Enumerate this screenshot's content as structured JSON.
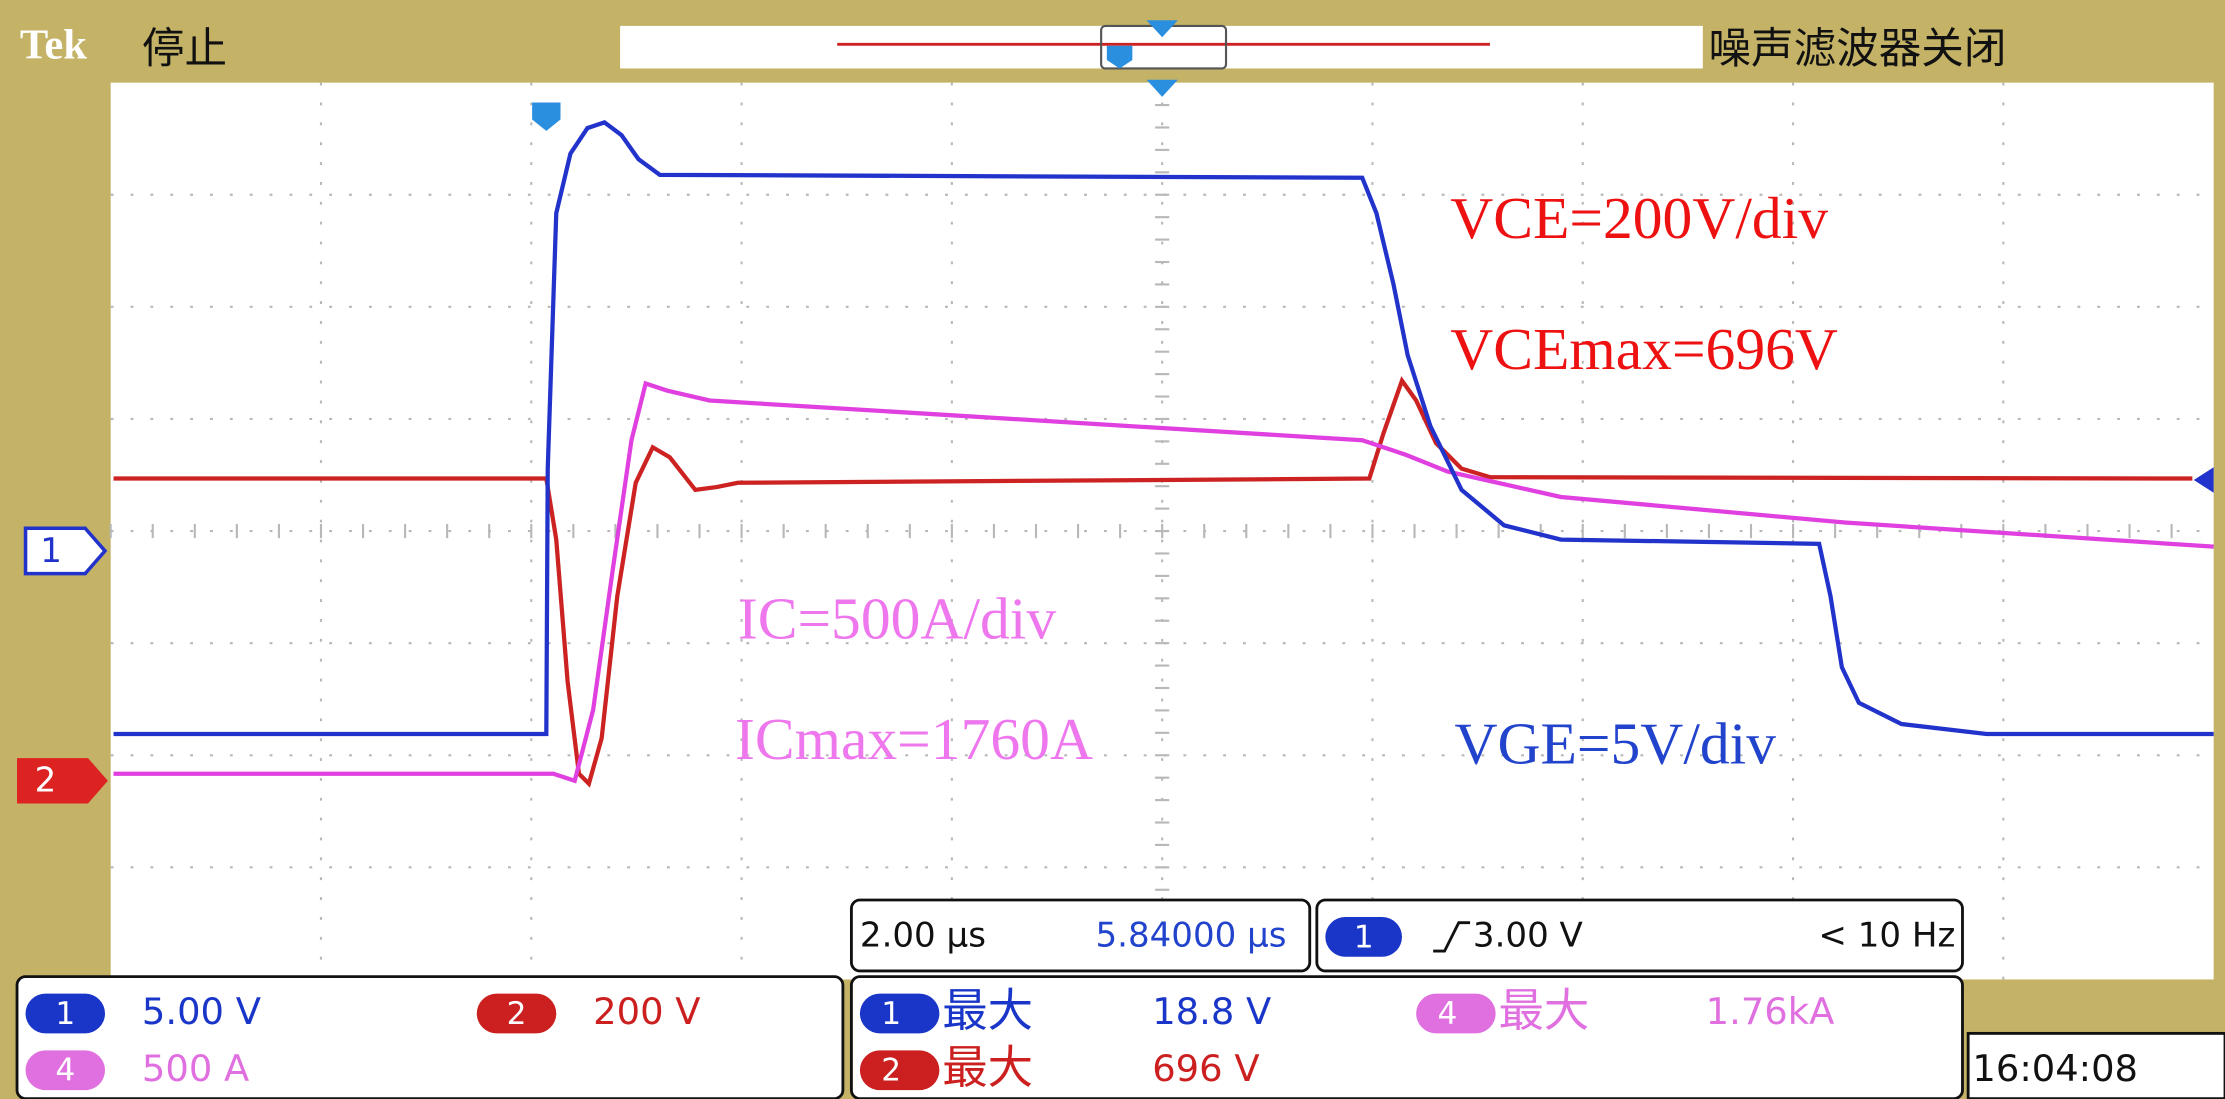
{
  "header": {
    "brand": "Tek",
    "status": "停止",
    "filter": "噪声滤波器关闭"
  },
  "markers": {
    "ch1": "1",
    "ch2": "2"
  },
  "annotations": [
    "VCE=200V/div",
    "VCEmax=696V",
    "IC=500A/div",
    "ICmax=1760A",
    "VGE=5V/div"
  ],
  "channels": [
    {
      "id": "1",
      "scale": "5.00 V"
    },
    {
      "id": "2",
      "scale": "200 V"
    },
    {
      "id": "4",
      "scale": "500 A"
    }
  ],
  "timebase": {
    "scale": "2.00 μs",
    "position": "5.84000 μs"
  },
  "trigger": {
    "channel": "1",
    "level": "3.00 V",
    "frequency": "< 10 Hz"
  },
  "measurements": [
    {
      "channel": "1",
      "label": "最大",
      "value": "18.8 V"
    },
    {
      "channel": "4",
      "label": "最大",
      "value": "1.76kA"
    },
    {
      "channel": "2",
      "label": "最大",
      "value": "696 V"
    }
  ],
  "clock": "16:04:08"
}
